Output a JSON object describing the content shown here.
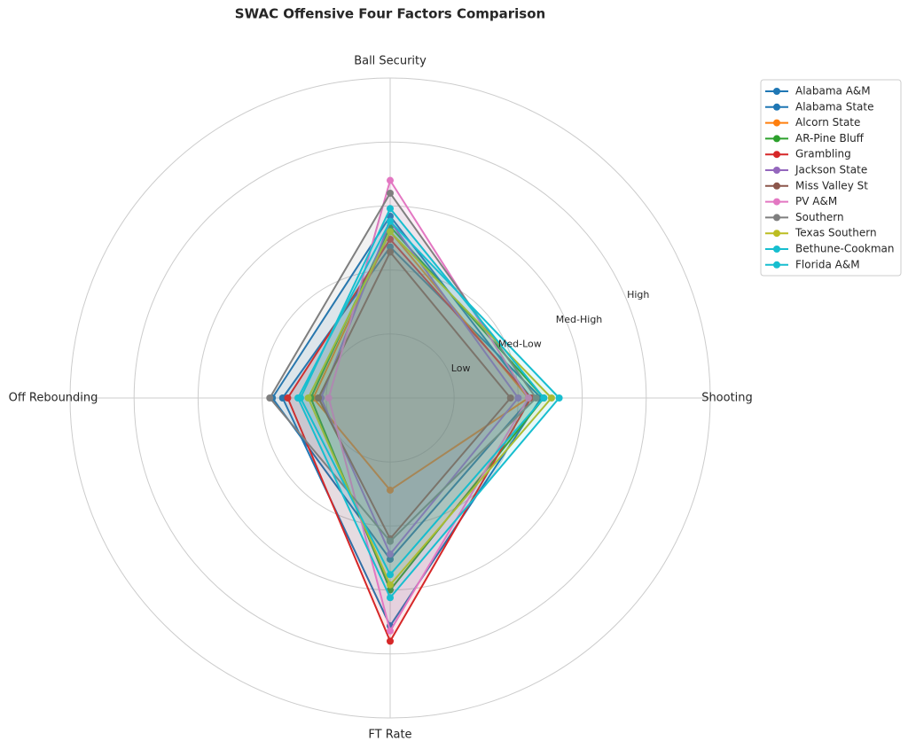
{
  "chart_data": {
    "type": "radar",
    "title": "SWAC Offensive Four Factors Comparison",
    "categories": [
      "Shooting",
      "Ball Security",
      "Off Rebounding",
      "FT Rate"
    ],
    "ylim": [
      0,
      1.25
    ],
    "yticks": [
      {
        "value": 0.25,
        "label": "Low"
      },
      {
        "value": 0.5,
        "label": "Med-Low"
      },
      {
        "value": 0.75,
        "label": "Med-High"
      },
      {
        "value": 1.0,
        "label": "High"
      }
    ],
    "grid": true,
    "legend": "upper right",
    "series": [
      {
        "name": "Alabama A&M",
        "color": "#1f77b4",
        "values": [
          0.55,
          0.71,
          0.46,
          0.63
        ]
      },
      {
        "name": "Alabama State",
        "color": "#1f77b4",
        "values": [
          0.59,
          0.59,
          0.42,
          0.89
        ]
      },
      {
        "name": "Alcorn State",
        "color": "#ff7f0e",
        "values": [
          0.54,
          0.65,
          0.3,
          0.36
        ]
      },
      {
        "name": "AR-Pine Bluff",
        "color": "#2ca02c",
        "values": [
          0.6,
          0.67,
          0.31,
          0.75
        ]
      },
      {
        "name": "Grambling",
        "color": "#d62728",
        "values": [
          0.55,
          0.62,
          0.4,
          0.95
        ]
      },
      {
        "name": "Jackson State",
        "color": "#9467bd",
        "values": [
          0.5,
          0.69,
          0.27,
          0.61
        ]
      },
      {
        "name": "Miss Valley St",
        "color": "#8c564b",
        "values": [
          0.47,
          0.57,
          0.28,
          0.55
        ]
      },
      {
        "name": "PV A&M",
        "color": "#e377c2",
        "values": [
          0.54,
          0.85,
          0.24,
          0.91
        ]
      },
      {
        "name": "Southern",
        "color": "#7f7f7f",
        "values": [
          0.57,
          0.8,
          0.47,
          0.56
        ]
      },
      {
        "name": "Texas Southern",
        "color": "#bcbd22",
        "values": [
          0.63,
          0.65,
          0.32,
          0.73
        ]
      },
      {
        "name": "Bethune-Cookman",
        "color": "#17becf",
        "values": [
          0.6,
          0.74,
          0.35,
          0.69
        ]
      },
      {
        "name": "Florida A&M",
        "color": "#17becf",
        "values": [
          0.66,
          0.69,
          0.36,
          0.78
        ]
      }
    ]
  }
}
